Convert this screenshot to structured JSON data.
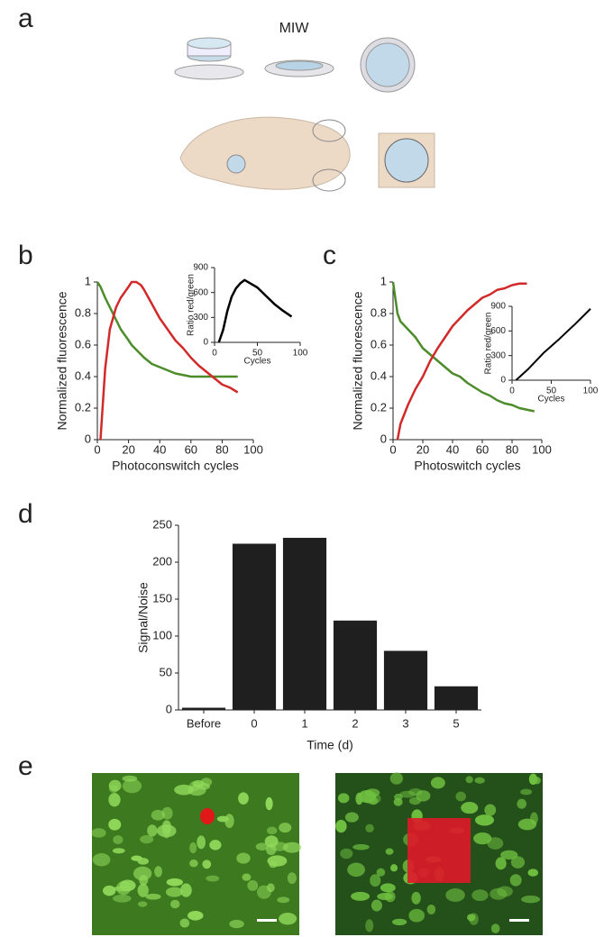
{
  "panels": {
    "a": {
      "label": "a",
      "title": "MIW"
    },
    "b": {
      "label": "b"
    },
    "c": {
      "label": "c"
    },
    "d": {
      "label": "d"
    },
    "e": {
      "label": "e"
    }
  },
  "chart_data": [
    {
      "type": "line",
      "xlabel": "Photoconswitch cycles",
      "ylabel": "Normalized fluorescence",
      "xlim": [
        0,
        100
      ],
      "ylim": [
        0,
        1
      ],
      "xticks": [
        0,
        20,
        40,
        60,
        80,
        100
      ],
      "yticks": [
        0,
        0.2,
        0.4,
        0.6,
        0.8,
        1
      ],
      "x": [
        0,
        2,
        5,
        8,
        12,
        15,
        20,
        22,
        25,
        28,
        30,
        35,
        40,
        45,
        50,
        55,
        60,
        65,
        70,
        75,
        80,
        85,
        90
      ],
      "series": [
        {
          "color": "#4c8c2b",
          "values": [
            1.0,
            0.97,
            0.9,
            0.84,
            0.76,
            0.7,
            0.63,
            0.6,
            0.57,
            0.54,
            0.52,
            0.48,
            0.46,
            0.44,
            0.42,
            0.41,
            0.4,
            0.4,
            0.4,
            0.4,
            0.4,
            0.4,
            0.4
          ]
        },
        {
          "color": "#d22a2a",
          "values": [
            null,
            0.0,
            0.45,
            0.7,
            0.84,
            0.9,
            0.97,
            1.0,
            1.0,
            0.98,
            0.95,
            0.86,
            0.77,
            0.7,
            0.63,
            0.58,
            0.52,
            0.47,
            0.43,
            0.39,
            0.35,
            0.33,
            0.3
          ]
        }
      ]
    },
    {
      "type": "line",
      "xlabel": "Cycles",
      "ylabel": "Ratio red/green",
      "xlim": [
        0,
        100
      ],
      "ylim": [
        0,
        900
      ],
      "xticks": [
        0,
        50,
        100
      ],
      "yticks": [
        0,
        300,
        600,
        900
      ],
      "x": [
        5,
        10,
        15,
        20,
        25,
        30,
        35,
        40,
        50,
        60,
        70,
        80,
        90
      ],
      "series": [
        {
          "color": "#000000",
          "values": [
            0,
            150,
            380,
            550,
            650,
            710,
            750,
            720,
            660,
            560,
            460,
            380,
            310
          ]
        }
      ]
    },
    {
      "type": "line",
      "xlabel": "Photoswitch cycles",
      "ylabel": "Normalized fluorescence",
      "xlim": [
        0,
        100
      ],
      "ylim": [
        0,
        1
      ],
      "xticks": [
        0,
        20,
        40,
        60,
        80,
        100
      ],
      "yticks": [
        0,
        0.2,
        0.4,
        0.6,
        0.8,
        1
      ],
      "x": [
        0,
        3,
        5,
        10,
        15,
        20,
        25,
        30,
        35,
        40,
        45,
        50,
        55,
        60,
        65,
        70,
        75,
        80,
        85,
        90,
        95
      ],
      "series": [
        {
          "color": "#4c8c2b",
          "values": [
            1.0,
            0.8,
            0.75,
            0.7,
            0.65,
            0.58,
            0.54,
            0.5,
            0.46,
            0.42,
            0.4,
            0.36,
            0.33,
            0.3,
            0.28,
            0.25,
            0.23,
            0.22,
            0.2,
            0.19,
            0.18
          ]
        },
        {
          "color": "#d22a2a",
          "values": [
            null,
            0.0,
            0.1,
            0.22,
            0.32,
            0.4,
            0.5,
            0.58,
            0.65,
            0.72,
            0.77,
            0.82,
            0.86,
            0.9,
            0.92,
            0.95,
            0.96,
            0.98,
            0.99,
            0.99,
            null
          ]
        }
      ]
    },
    {
      "type": "line",
      "xlabel": "Cycles",
      "ylabel": "Ratio red/green",
      "xlim": [
        0,
        100
      ],
      "ylim": [
        0,
        900
      ],
      "xticks": [
        0,
        50,
        100
      ],
      "yticks": [
        0,
        300,
        600,
        900
      ],
      "x": [
        5,
        20,
        40,
        60,
        80,
        100
      ],
      "series": [
        {
          "color": "#000000",
          "values": [
            0,
            130,
            330,
            500,
            680,
            870
          ]
        }
      ]
    },
    {
      "type": "bar",
      "xlabel": "Time (d)",
      "ylabel": "Signal/Noise",
      "color": "#1f1f1f",
      "categories": [
        "Before",
        "0",
        "1",
        "2",
        "3",
        "5"
      ],
      "values": [
        3,
        225,
        233,
        121,
        80,
        32
      ],
      "ylim": [
        0,
        250
      ],
      "yticks": [
        0,
        50,
        100,
        150,
        200,
        250
      ]
    }
  ]
}
